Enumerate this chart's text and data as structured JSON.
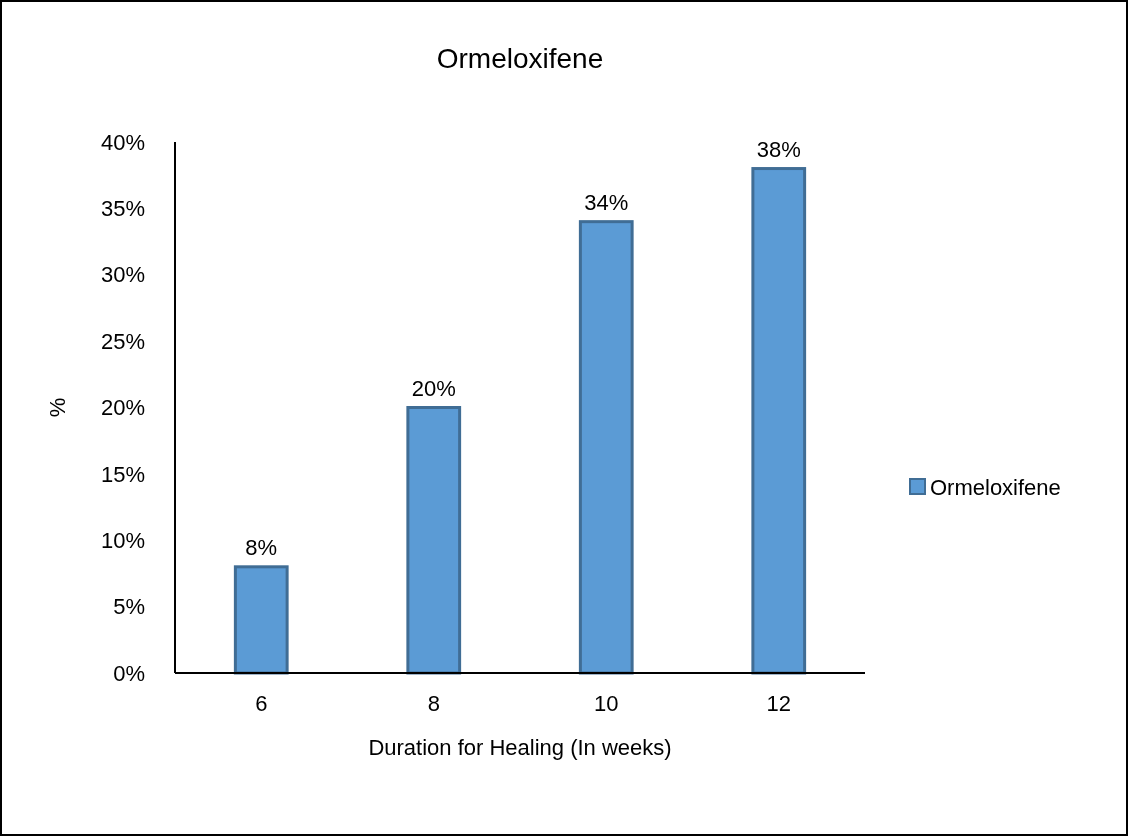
{
  "chart_data": {
    "type": "bar",
    "title": "Ormeloxifene",
    "xlabel": "Duration for Healing (In weeks)",
    "ylabel": "%",
    "categories": [
      "6",
      "8",
      "10",
      "12"
    ],
    "series": [
      {
        "name": "Ormeloxifene",
        "color": "#5b9bd5",
        "values": [
          8,
          20,
          34,
          38
        ],
        "value_labels": [
          "8%",
          "20%",
          "34%",
          "38%"
        ]
      }
    ],
    "ylim": [
      0,
      40
    ],
    "yticks": [
      {
        "value": 0,
        "label": "0%"
      },
      {
        "value": 5,
        "label": "5%"
      },
      {
        "value": 10,
        "label": "10%"
      },
      {
        "value": 15,
        "label": "15%"
      },
      {
        "value": 20,
        "label": "20%"
      },
      {
        "value": 25,
        "label": "25%"
      },
      {
        "value": 30,
        "label": "30%"
      },
      {
        "value": 35,
        "label": "35%"
      },
      {
        "value": 40,
        "label": "40%"
      }
    ],
    "grid": false,
    "legend": "right"
  }
}
